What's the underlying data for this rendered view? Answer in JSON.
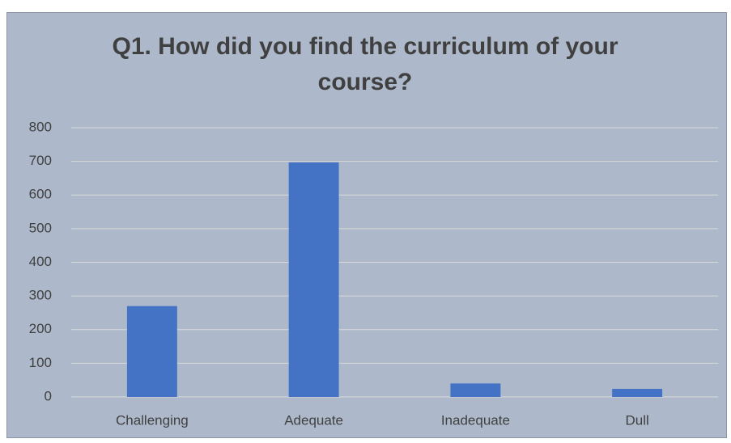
{
  "chart_data": {
    "type": "bar",
    "title": "Q1. How did you find the curriculum of your course?",
    "categories": [
      "Challenging",
      "Adequate",
      "Inadequate",
      "Dull"
    ],
    "values": [
      270,
      697,
      40,
      24
    ],
    "color": "#4472c4",
    "ylim": [
      0,
      800
    ],
    "yticks": [
      0,
      100,
      200,
      300,
      400,
      500,
      600,
      700,
      800
    ],
    "grid": true
  }
}
